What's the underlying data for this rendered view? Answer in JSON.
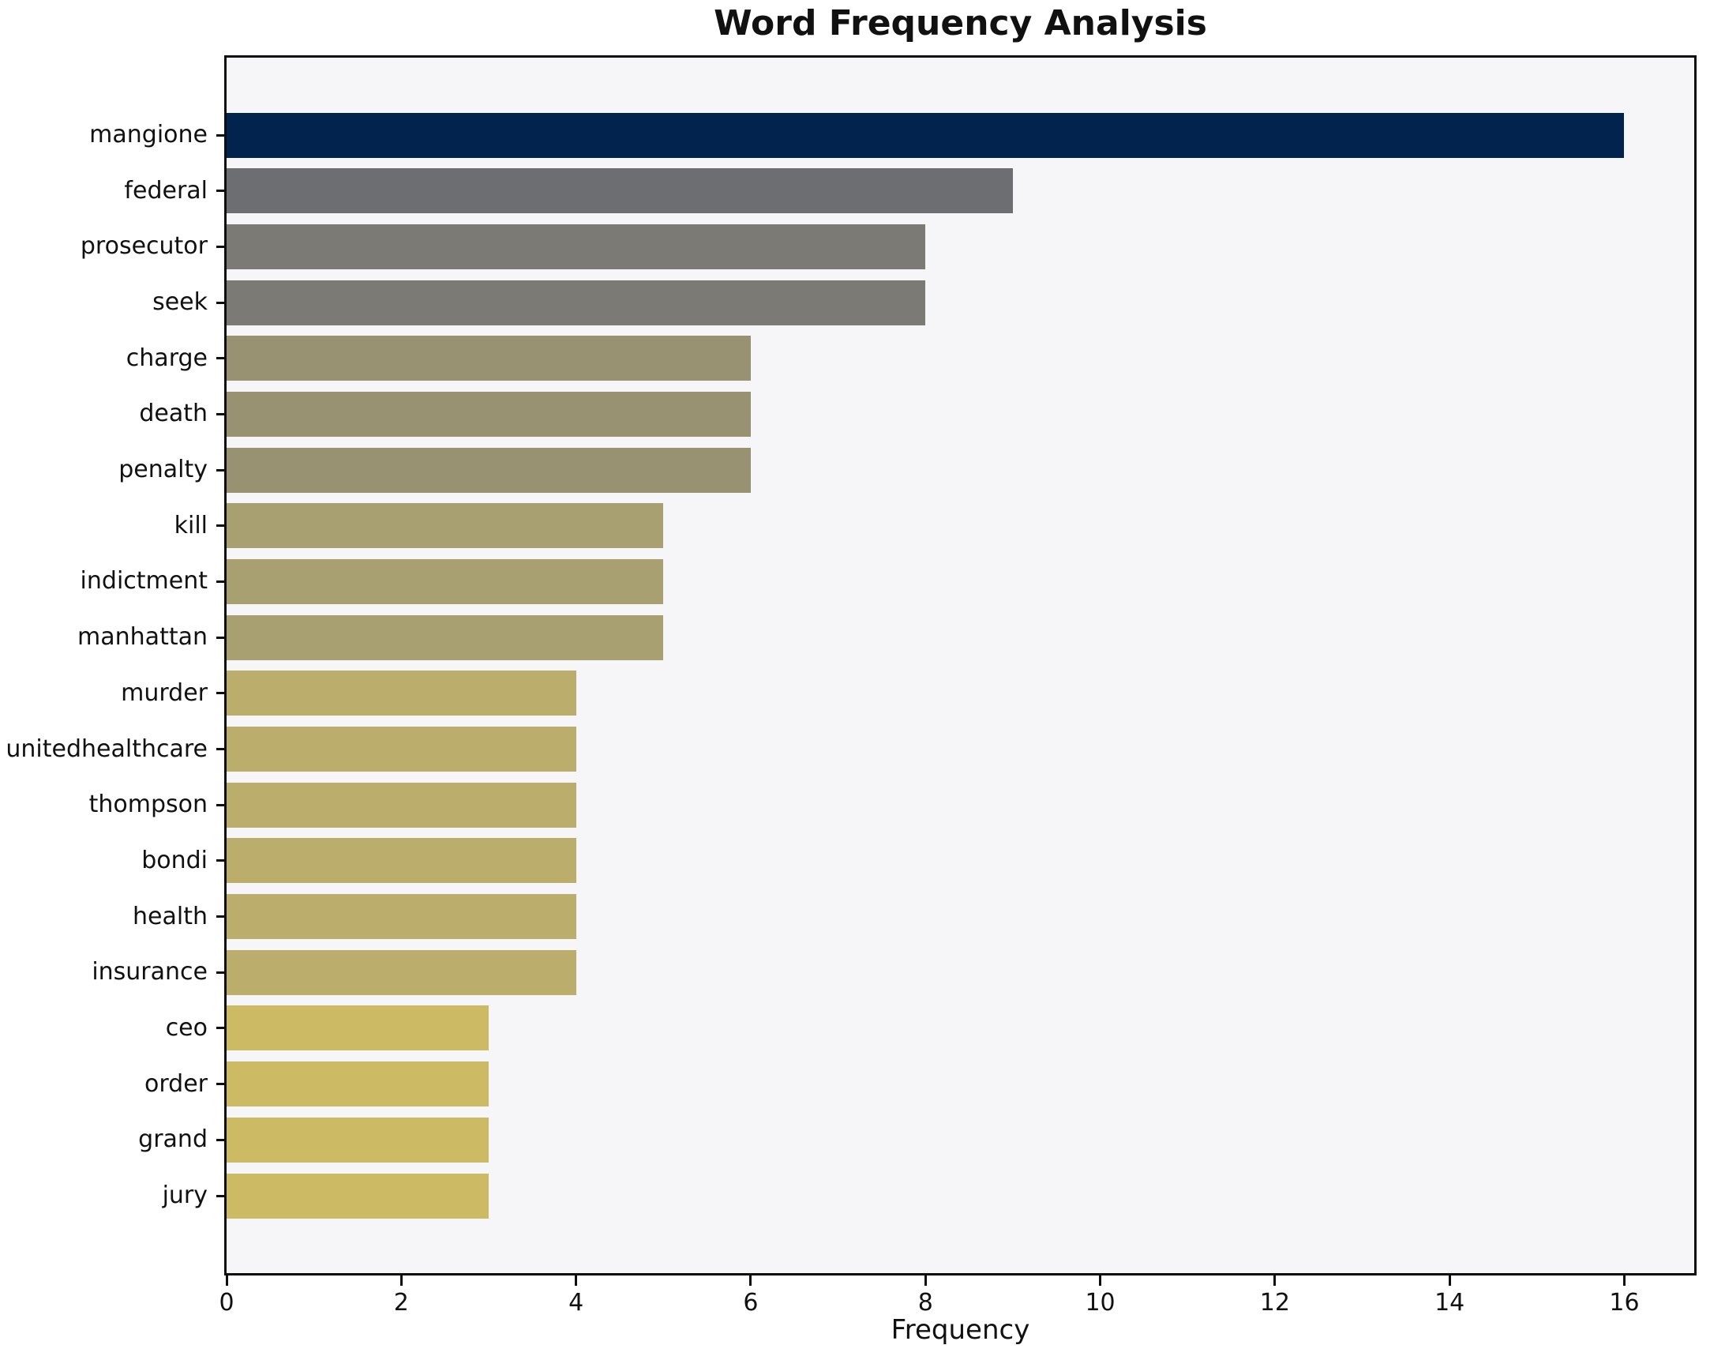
{
  "figure": {
    "background": "#ffffff"
  },
  "chart_data": {
    "type": "bar",
    "orientation": "horizontal",
    "title": "Word Frequency Analysis",
    "xlabel": "Frequency",
    "ylabel": "",
    "categories": [
      "mangione",
      "federal",
      "prosecutor",
      "seek",
      "charge",
      "death",
      "penalty",
      "kill",
      "indictment",
      "manhattan",
      "murder",
      "unitedhealthcare",
      "thompson",
      "bondi",
      "health",
      "insurance",
      "ceo",
      "order",
      "grand",
      "jury"
    ],
    "values": [
      16,
      9,
      8,
      8,
      6,
      6,
      6,
      5,
      5,
      5,
      4,
      4,
      4,
      4,
      4,
      4,
      3,
      3,
      3,
      3
    ],
    "bar_colors": [
      "#01234d",
      "#6c6e72",
      "#7b7a74",
      "#7b7a74",
      "#999272",
      "#999272",
      "#999272",
      "#a9a071",
      "#a9a071",
      "#a9a071",
      "#bbae6c",
      "#bbae6c",
      "#bbae6c",
      "#bbae6c",
      "#bbae6c",
      "#bbae6c",
      "#cdba64",
      "#cdba64",
      "#cdba64",
      "#cdba64"
    ],
    "x_ticks": [
      0,
      2,
      4,
      6,
      8,
      10,
      12,
      14,
      16
    ],
    "xlim": [
      0,
      16.8
    ],
    "grid": false,
    "legend_position": "none",
    "plot_background": "#f6f6f8",
    "axis_color": "#0e0e0e",
    "text_color": "#111111"
  }
}
